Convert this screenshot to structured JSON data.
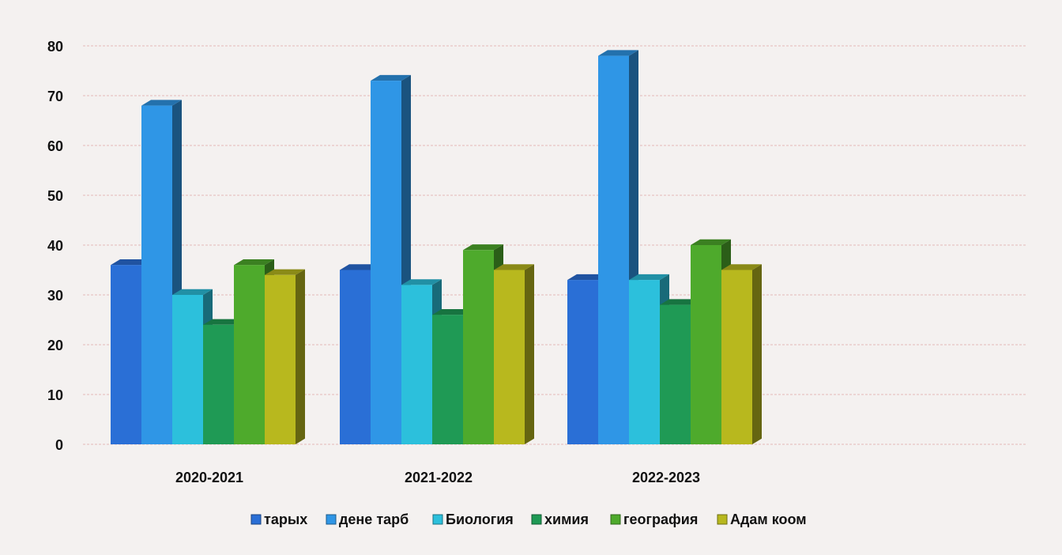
{
  "chart_data": {
    "type": "bar",
    "title": "",
    "xlabel": "",
    "ylabel": "",
    "ylim": [
      0,
      80
    ],
    "yticks": [
      0,
      10,
      20,
      30,
      40,
      50,
      60,
      70,
      80
    ],
    "categories": [
      "2020-2021",
      "2021-2022",
      "2022-2023"
    ],
    "grid": true,
    "legend_position": "bottom",
    "three_d": true,
    "series": [
      {
        "name": "тарых",
        "color": "#2a6fd6",
        "values": [
          36,
          35,
          33
        ]
      },
      {
        "name": "дене тарб",
        "color": "#2f96e6",
        "values": [
          68,
          73,
          78
        ]
      },
      {
        "name": "Биология",
        "color": "#2cc0dc",
        "values": [
          30,
          32,
          33
        ]
      },
      {
        "name": "химия",
        "color": "#1f9a55",
        "values": [
          24,
          26,
          28
        ]
      },
      {
        "name": "география",
        "color": "#4eaa2c",
        "values": [
          36,
          39,
          40
        ]
      },
      {
        "name": "Адам коом",
        "color": "#b8b81e",
        "values": [
          34,
          35,
          35
        ]
      }
    ]
  }
}
